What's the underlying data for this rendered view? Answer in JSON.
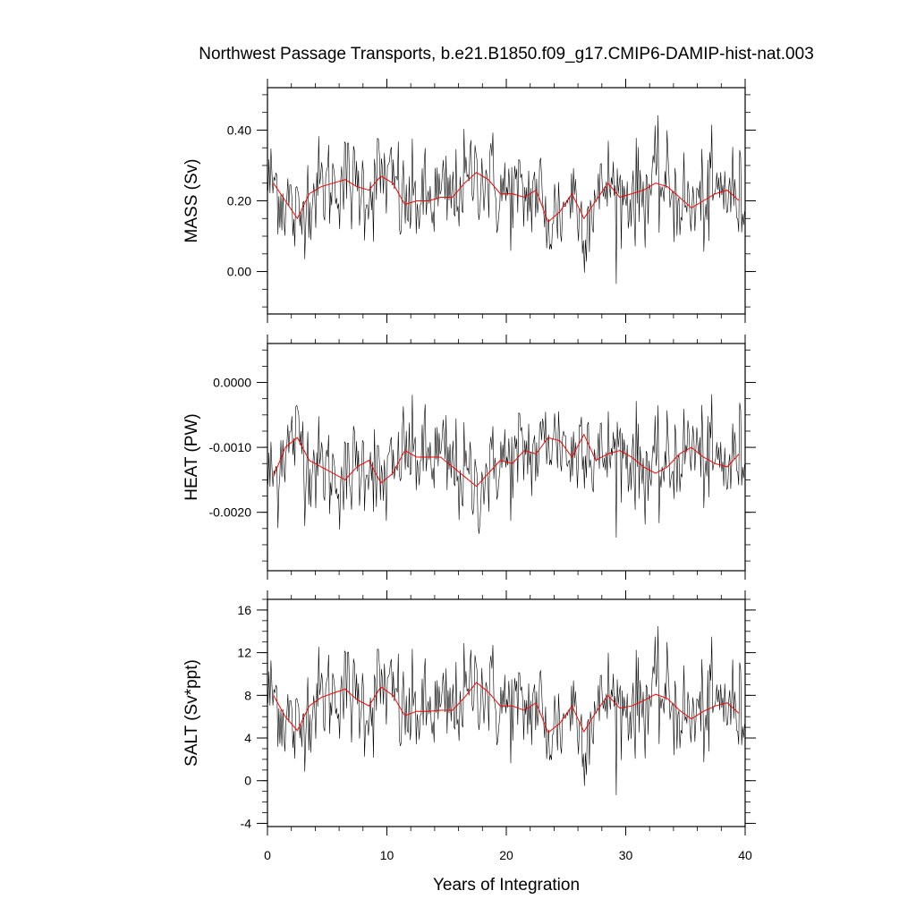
{
  "title": "Northwest Passage Transports, b.e21.B1850.f09_g17.CMIP6-DAMIP-hist-nat.003",
  "xlabel": "Years of Integration",
  "colors": {
    "monthly": "#000000",
    "annual": "#ff0000"
  },
  "chart_data": [
    {
      "type": "line",
      "panel": "mass",
      "ylabel": "MASS (Sv)",
      "ylim": [
        -0.12,
        0.52
      ],
      "yticks": [
        0.0,
        0.2,
        0.4
      ],
      "yticklabels": [
        "0.00",
        "0.20",
        "0.40"
      ],
      "xlim": [
        0,
        40
      ],
      "series": [
        {
          "kind": "monthly",
          "x": [],
          "values": []
        },
        {
          "kind": "annual",
          "x": [
            0.5,
            1.5,
            2.5,
            3.5,
            4.5,
            5.5,
            6.5,
            7.5,
            8.5,
            9.5,
            10.5,
            11.5,
            12.5,
            13.5,
            14.5,
            15.5,
            16.5,
            17.5,
            18.5,
            19.5,
            20.5,
            21.5,
            22.5,
            23.5,
            24.5,
            25.5,
            26.5,
            27.5,
            28.5,
            29.5,
            30.5,
            31.5,
            32.5,
            33.5,
            34.5,
            35.5,
            36.5,
            37.5,
            38.5,
            39.5
          ],
          "values": [
            0.25,
            0.2,
            0.15,
            0.22,
            0.24,
            0.25,
            0.26,
            0.24,
            0.23,
            0.27,
            0.25,
            0.19,
            0.2,
            0.2,
            0.21,
            0.21,
            0.25,
            0.28,
            0.26,
            0.22,
            0.22,
            0.21,
            0.23,
            0.14,
            0.17,
            0.22,
            0.15,
            0.2,
            0.25,
            0.21,
            0.22,
            0.23,
            0.25,
            0.24,
            0.21,
            0.18,
            0.2,
            0.22,
            0.23,
            0.2
          ]
        }
      ]
    },
    {
      "type": "line",
      "panel": "heat",
      "ylabel": "HEAT (PW)",
      "ylim": [
        -0.0029,
        0.0006
      ],
      "yticks": [
        -0.002,
        -0.001,
        0.0
      ],
      "yticklabels": [
        "-0.0020",
        "-0.0010",
        "0.0000"
      ],
      "xlim": [
        0,
        40
      ],
      "series": [
        {
          "kind": "monthly",
          "x": [],
          "values": []
        },
        {
          "kind": "annual",
          "x": [
            0.5,
            1.5,
            2.5,
            3.5,
            4.5,
            5.5,
            6.5,
            7.5,
            8.5,
            9.5,
            10.5,
            11.5,
            12.5,
            13.5,
            14.5,
            15.5,
            16.5,
            17.5,
            18.5,
            19.5,
            20.5,
            21.5,
            22.5,
            23.5,
            24.5,
            25.5,
            26.5,
            27.5,
            28.5,
            29.5,
            30.5,
            31.5,
            32.5,
            33.5,
            34.5,
            35.5,
            36.5,
            37.5,
            38.5,
            39.5
          ],
          "values": [
            -0.00145,
            -0.001,
            -0.00085,
            -0.0012,
            -0.0013,
            -0.0014,
            -0.0015,
            -0.0013,
            -0.0012,
            -0.00155,
            -0.0014,
            -0.00105,
            -0.00115,
            -0.00115,
            -0.00115,
            -0.0013,
            -0.00145,
            -0.0016,
            -0.0014,
            -0.0012,
            -0.00125,
            -0.00105,
            -0.0011,
            -0.00085,
            -0.0009,
            -0.00115,
            -0.0008,
            -0.0012,
            -0.0011,
            -0.00105,
            -0.00115,
            -0.0013,
            -0.0014,
            -0.0013,
            -0.0011,
            -0.001,
            -0.00115,
            -0.00125,
            -0.0013,
            -0.0011
          ]
        }
      ]
    },
    {
      "type": "line",
      "panel": "salt",
      "ylabel": "SALT (Sv*ppt)",
      "ylim": [
        -4.3,
        17
      ],
      "yticks": [
        -4,
        0,
        4,
        8,
        12,
        16
      ],
      "yticklabels": [
        "-4",
        "0",
        "4",
        "8",
        "12",
        "16"
      ],
      "xlim": [
        0,
        40
      ],
      "series": [
        {
          "kind": "monthly",
          "x": [],
          "values": []
        },
        {
          "kind": "annual",
          "x": [
            0.5,
            1.5,
            2.5,
            3.5,
            4.5,
            5.5,
            6.5,
            7.5,
            8.5,
            9.5,
            10.5,
            11.5,
            12.5,
            13.5,
            14.5,
            15.5,
            16.5,
            17.5,
            18.5,
            19.5,
            20.5,
            21.5,
            22.5,
            23.5,
            24.5,
            25.5,
            26.5,
            27.5,
            28.5,
            29.5,
            30.5,
            31.5,
            32.5,
            33.5,
            34.5,
            35.5,
            36.5,
            37.5,
            38.5,
            39.5
          ],
          "values": [
            8.0,
            6.0,
            4.7,
            7.0,
            7.8,
            8.2,
            8.6,
            7.6,
            7.0,
            8.8,
            8.0,
            6.1,
            6.5,
            6.5,
            6.6,
            6.6,
            7.8,
            9.2,
            8.3,
            7.0,
            7.0,
            6.6,
            7.3,
            4.5,
            5.4,
            7.0,
            4.6,
            6.4,
            8.0,
            6.8,
            7.0,
            7.5,
            8.1,
            7.7,
            6.6,
            5.8,
            6.5,
            7.0,
            7.3,
            6.3
          ]
        }
      ]
    }
  ],
  "xaxis": {
    "ticks": [
      0,
      10,
      20,
      30,
      40
    ],
    "ticklabels": [
      "0",
      "10",
      "20",
      "30",
      "40"
    ]
  }
}
